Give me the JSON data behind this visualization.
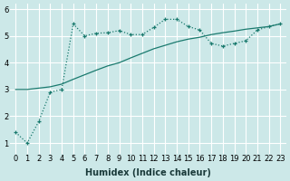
{
  "xlabel": "Humidex (Indice chaleur)",
  "background_color": "#cce8e8",
  "grid_color": "#ffffff",
  "line_color": "#1a7a6e",
  "dotted_x": [
    0,
    1,
    2,
    3,
    4,
    5,
    6,
    7,
    8,
    9,
    10,
    11,
    12,
    13,
    14,
    15,
    16,
    17,
    18,
    19,
    20,
    21,
    22,
    23
  ],
  "dotted_y": [
    1.4,
    1.0,
    1.8,
    2.9,
    3.0,
    5.45,
    5.0,
    5.1,
    5.12,
    5.2,
    5.05,
    5.05,
    5.32,
    5.62,
    5.62,
    5.35,
    5.22,
    4.72,
    4.62,
    4.72,
    4.82,
    5.22,
    5.35,
    5.45
  ],
  "solid_x": [
    0,
    1,
    2,
    3,
    4,
    5,
    6,
    7,
    8,
    9,
    10,
    11,
    12,
    13,
    14,
    15,
    16,
    17,
    18,
    19,
    20,
    21,
    22,
    23
  ],
  "solid_y": [
    3.0,
    3.0,
    3.05,
    3.1,
    3.2,
    3.38,
    3.55,
    3.72,
    3.88,
    4.0,
    4.18,
    4.35,
    4.52,
    4.65,
    4.78,
    4.88,
    4.95,
    5.05,
    5.12,
    5.18,
    5.25,
    5.3,
    5.35,
    5.45
  ],
  "ylim": [
    0.6,
    6.2
  ],
  "xlim": [
    -0.5,
    23.5
  ],
  "yticks": [
    1,
    2,
    3,
    4,
    5,
    6
  ],
  "xticks": [
    0,
    1,
    2,
    3,
    4,
    5,
    6,
    7,
    8,
    9,
    10,
    11,
    12,
    13,
    14,
    15,
    16,
    17,
    18,
    19,
    20,
    21,
    22,
    23
  ],
  "tick_fontsize": 6,
  "label_fontsize": 7,
  "marker_size": 3.5,
  "linewidth": 0.9
}
